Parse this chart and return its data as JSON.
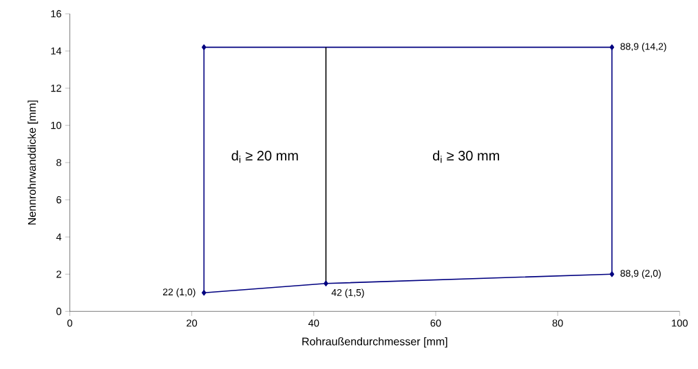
{
  "chart_data": {
    "type": "line",
    "xlabel": "Rohraußendurchmesser [mm]",
    "ylabel": "Nennrohrwanddicke [mm]",
    "series": [
      {
        "color": "#000080",
        "marker": "diamond",
        "x": [
          22,
          42,
          88.9
        ],
        "values": [
          1.0,
          1.5,
          2.0
        ]
      },
      {
        "color": "#000080",
        "marker": "diamond",
        "x": [
          22,
          88.9
        ],
        "values": [
          14.2,
          14.2
        ]
      },
      {
        "color": "#000080",
        "marker": "none",
        "x": [
          22,
          22
        ],
        "values": [
          1.0,
          14.2
        ]
      },
      {
        "color": "#000080",
        "marker": "none",
        "x": [
          88.9,
          88.9
        ],
        "values": [
          2.0,
          14.2
        ]
      },
      {
        "color": "#000000",
        "marker": "none",
        "x": [
          42,
          42
        ],
        "values": [
          1.5,
          14.2
        ]
      }
    ],
    "xlim": [
      0,
      100
    ],
    "xticks": [
      0,
      20,
      40,
      60,
      80,
      100
    ],
    "ylim": [
      0,
      16
    ],
    "yticks": [
      0,
      2,
      4,
      6,
      8,
      10,
      12,
      14,
      16
    ],
    "grid": false,
    "line_style": "solid",
    "annotations": [
      {
        "text": "22 (1,0)",
        "x": 22,
        "y": 1.0
      },
      {
        "text": "42 (1,5)",
        "x": 42,
        "y": 1.5
      },
      {
        "text": "88,9 (2,0)",
        "x": 88.9,
        "y": 2.0
      },
      {
        "text": "88,9 (14,2)",
        "x": 88.9,
        "y": 14.2
      },
      "d$_{i}$ ≥ 20 mm",
      "d$_{i}$ ≥ 30 mm"
    ]
  }
}
